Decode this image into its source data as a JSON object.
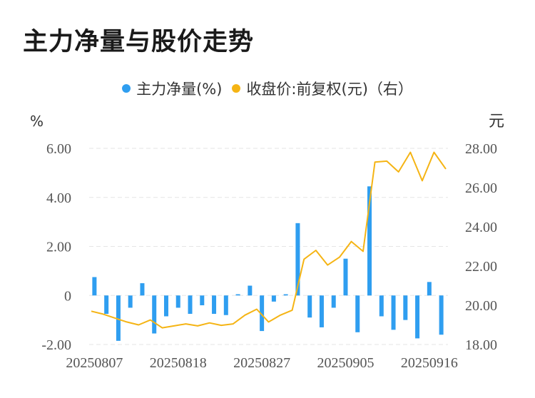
{
  "title": "主力净量与股价走势",
  "colors": {
    "bar": "#2f9ef0",
    "line": "#f5b414",
    "grid": "#e6e6e6",
    "tick": "#555555"
  },
  "chart_data": {
    "type": "bar+line",
    "title": "主力净量与股价走势",
    "legend": [
      {
        "label": "主力净量(%)",
        "color": "#2f9ef0"
      },
      {
        "label": "收盘价:前复权(元)（右）",
        "color": "#f5b414"
      }
    ],
    "y_left_unit": "%",
    "y_right_unit": "元",
    "y_left_ticks": [
      "6.00",
      "4.00",
      "2.00",
      "0",
      "-2.00"
    ],
    "y_right_ticks": [
      "28.00",
      "26.00",
      "24.00",
      "22.00",
      "20.00",
      "18.00"
    ],
    "y_left_range": [
      -2,
      6
    ],
    "y_right_range": [
      18,
      28
    ],
    "x_tick_labels": [
      "20250807",
      "20250818",
      "20250827",
      "20250905",
      "20250916"
    ],
    "x_tick_indices": [
      0,
      7,
      14,
      21,
      28
    ],
    "grid": true,
    "series": [
      {
        "name": "主力净量(%)",
        "type": "bar",
        "axis": "left",
        "values": [
          0.75,
          -0.75,
          -1.85,
          -0.5,
          0.5,
          -1.55,
          -0.85,
          -0.5,
          -0.75,
          -0.4,
          -0.75,
          -0.8,
          0.05,
          0.4,
          -1.45,
          -0.25,
          0.05,
          2.95,
          -0.9,
          -1.3,
          -0.5,
          1.5,
          -1.5,
          4.45,
          -0.85,
          -1.4,
          -1.0,
          -1.75,
          0.55,
          -1.6
        ]
      },
      {
        "name": "收盘价:前复权(元)（右）",
        "type": "line",
        "axis": "right",
        "values": [
          19.7,
          19.55,
          19.35,
          19.15,
          19.0,
          19.25,
          18.85,
          18.95,
          19.05,
          18.95,
          19.1,
          18.98,
          19.05,
          19.5,
          19.8,
          19.15,
          19.5,
          19.75,
          22.35,
          22.8,
          22.05,
          22.45,
          23.25,
          22.75,
          27.3,
          27.35,
          26.8,
          27.8,
          26.35,
          27.8,
          26.95
        ]
      }
    ]
  }
}
